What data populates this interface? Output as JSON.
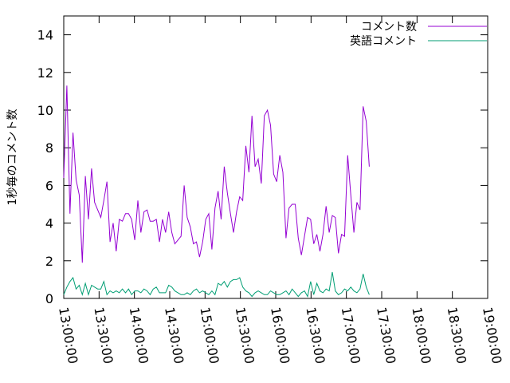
{
  "chart_data": {
    "type": "line",
    "title": "",
    "xlabel": "",
    "ylabel": "1秒毎のコメント数",
    "ylim": [
      0,
      15
    ],
    "yticks": [
      "0",
      "2",
      "4",
      "6",
      "8",
      "10",
      "12",
      "14"
    ],
    "xlim": [
      "13:00:00",
      "19:00:00"
    ],
    "xticks": [
      "13:00:00",
      "13:30:00",
      "14:00:00",
      "14:30:00",
      "15:00:00",
      "15:30:00",
      "16:00:00",
      "16:30:00",
      "17:00:00",
      "17:30:00",
      "18:00:00",
      "18:30:00",
      "19:00:00"
    ],
    "grid": false,
    "legend_position": "top-right",
    "series": [
      {
        "name": "コメント数",
        "color": "#9400d3",
        "points": [
          [
            "13:00:00",
            6.4
          ],
          [
            "13:02:37",
            11.3
          ],
          [
            "13:05:15",
            4.5
          ],
          [
            "13:07:52",
            8.8
          ],
          [
            "13:10:29",
            6.3
          ],
          [
            "13:13:06",
            5.5
          ],
          [
            "13:15:44",
            1.9
          ],
          [
            "13:18:21",
            6.5
          ],
          [
            "13:20:58",
            4.2
          ],
          [
            "13:23:35",
            6.9
          ],
          [
            "13:26:13",
            5.1
          ],
          [
            "13:28:50",
            4.7
          ],
          [
            "13:31:27",
            4.3
          ],
          [
            "13:34:04",
            5.2
          ],
          [
            "13:36:42",
            6.2
          ],
          [
            "13:39:19",
            3.0
          ],
          [
            "13:41:56",
            4.0
          ],
          [
            "13:44:33",
            2.5
          ],
          [
            "13:47:11",
            4.2
          ],
          [
            "13:49:48",
            4.1
          ],
          [
            "13:52:25",
            4.5
          ],
          [
            "13:55:02",
            4.5
          ],
          [
            "13:57:40",
            4.2
          ],
          [
            "14:00:17",
            3.1
          ],
          [
            "14:02:54",
            5.2
          ],
          [
            "14:05:31",
            3.5
          ],
          [
            "14:08:09",
            4.6
          ],
          [
            "14:10:46",
            4.7
          ],
          [
            "14:13:23",
            4.1
          ],
          [
            "14:16:00",
            4.1
          ],
          [
            "14:18:38",
            4.2
          ],
          [
            "14:21:15",
            3.0
          ],
          [
            "14:23:52",
            4.2
          ],
          [
            "14:26:29",
            3.5
          ],
          [
            "14:29:07",
            4.6
          ],
          [
            "14:31:44",
            3.5
          ],
          [
            "14:34:21",
            2.9
          ],
          [
            "14:36:58",
            3.1
          ],
          [
            "14:39:36",
            3.3
          ],
          [
            "14:42:13",
            6.0
          ],
          [
            "14:44:50",
            4.3
          ],
          [
            "14:47:27",
            3.8
          ],
          [
            "14:50:05",
            2.9
          ],
          [
            "14:52:42",
            3.0
          ],
          [
            "14:55:19",
            2.2
          ],
          [
            "14:57:56",
            3.0
          ],
          [
            "15:00:34",
            4.2
          ],
          [
            "15:03:11",
            4.5
          ],
          [
            "15:05:48",
            2.6
          ],
          [
            "15:08:25",
            4.8
          ],
          [
            "15:11:03",
            5.7
          ],
          [
            "15:13:40",
            4.2
          ],
          [
            "15:16:17",
            7.0
          ],
          [
            "15:18:54",
            5.6
          ],
          [
            "15:21:32",
            4.5
          ],
          [
            "15:24:09",
            3.5
          ],
          [
            "15:26:46",
            4.6
          ],
          [
            "15:29:23",
            5.4
          ],
          [
            "15:32:01",
            5.2
          ],
          [
            "15:34:38",
            8.1
          ],
          [
            "15:37:15",
            6.7
          ],
          [
            "15:39:52",
            9.7
          ],
          [
            "15:42:30",
            7.0
          ],
          [
            "15:45:07",
            7.4
          ],
          [
            "15:47:44",
            6.1
          ],
          [
            "15:50:21",
            9.7
          ],
          [
            "15:52:59",
            10.0
          ],
          [
            "15:55:36",
            9.2
          ],
          [
            "15:58:13",
            6.6
          ],
          [
            "16:00:50",
            6.2
          ],
          [
            "16:03:28",
            7.6
          ],
          [
            "16:06:05",
            6.7
          ],
          [
            "16:08:42",
            3.2
          ],
          [
            "16:11:19",
            4.8
          ],
          [
            "16:13:57",
            5.0
          ],
          [
            "16:16:34",
            5.0
          ],
          [
            "16:19:11",
            3.2
          ],
          [
            "16:21:48",
            2.3
          ],
          [
            "16:24:26",
            3.3
          ],
          [
            "16:27:03",
            4.3
          ],
          [
            "16:29:40",
            4.2
          ],
          [
            "16:32:17",
            2.9
          ],
          [
            "16:34:55",
            3.4
          ],
          [
            "16:37:32",
            2.5
          ],
          [
            "16:40:09",
            3.4
          ],
          [
            "16:42:46",
            4.9
          ],
          [
            "16:45:24",
            3.5
          ],
          [
            "16:48:01",
            4.4
          ],
          [
            "16:50:38",
            4.3
          ],
          [
            "16:53:15",
            2.4
          ],
          [
            "16:55:53",
            3.4
          ],
          [
            "16:58:30",
            3.3
          ],
          [
            "17:01:07",
            7.6
          ],
          [
            "17:03:44",
            5.5
          ],
          [
            "17:06:22",
            3.5
          ],
          [
            "17:08:59",
            5.1
          ],
          [
            "17:11:36",
            4.7
          ],
          [
            "17:14:13",
            10.2
          ],
          [
            "17:16:51",
            9.4
          ],
          [
            "17:19:28",
            7.0
          ]
        ]
      },
      {
        "name": "英語コメント",
        "color": "#009e73",
        "points": [
          [
            "13:00:00",
            0.2
          ],
          [
            "13:02:37",
            0.6
          ],
          [
            "13:05:15",
            0.9
          ],
          [
            "13:07:52",
            1.1
          ],
          [
            "13:10:29",
            0.5
          ],
          [
            "13:13:06",
            0.7
          ],
          [
            "13:15:44",
            0.2
          ],
          [
            "13:18:21",
            0.8
          ],
          [
            "13:20:58",
            0.2
          ],
          [
            "13:23:35",
            0.7
          ],
          [
            "13:26:13",
            0.6
          ],
          [
            "13:28:50",
            0.5
          ],
          [
            "13:31:27",
            0.5
          ],
          [
            "13:34:04",
            0.9
          ],
          [
            "13:36:42",
            0.2
          ],
          [
            "13:39:19",
            0.4
          ],
          [
            "13:41:56",
            0.3
          ],
          [
            "13:44:33",
            0.4
          ],
          [
            "13:47:11",
            0.3
          ],
          [
            "13:49:48",
            0.5
          ],
          [
            "13:52:25",
            0.3
          ],
          [
            "13:55:02",
            0.5
          ],
          [
            "13:57:40",
            0.2
          ],
          [
            "14:00:17",
            0.4
          ],
          [
            "14:02:54",
            0.4
          ],
          [
            "14:05:31",
            0.3
          ],
          [
            "14:08:09",
            0.5
          ],
          [
            "14:10:46",
            0.4
          ],
          [
            "14:13:23",
            0.2
          ],
          [
            "14:16:00",
            0.5
          ],
          [
            "14:18:38",
            0.6
          ],
          [
            "14:21:15",
            0.3
          ],
          [
            "14:23:52",
            0.3
          ],
          [
            "14:26:29",
            0.3
          ],
          [
            "14:29:07",
            0.7
          ],
          [
            "14:31:44",
            0.6
          ],
          [
            "14:34:21",
            0.4
          ],
          [
            "14:36:58",
            0.3
          ],
          [
            "14:39:36",
            0.2
          ],
          [
            "14:42:13",
            0.2
          ],
          [
            "14:44:50",
            0.3
          ],
          [
            "14:47:27",
            0.2
          ],
          [
            "14:50:05",
            0.4
          ],
          [
            "14:52:42",
            0.5
          ],
          [
            "14:55:19",
            0.3
          ],
          [
            "14:57:56",
            0.4
          ],
          [
            "15:00:34",
            0.3
          ],
          [
            "15:03:11",
            0.2
          ],
          [
            "15:05:48",
            0.4
          ],
          [
            "15:08:25",
            0.2
          ],
          [
            "15:11:03",
            0.8
          ],
          [
            "15:13:40",
            0.7
          ],
          [
            "15:16:17",
            0.9
          ],
          [
            "15:18:54",
            0.6
          ],
          [
            "15:21:32",
            0.9
          ],
          [
            "15:24:09",
            1.0
          ],
          [
            "15:26:46",
            1.0
          ],
          [
            "15:29:23",
            1.1
          ],
          [
            "15:32:01",
            0.6
          ],
          [
            "15:34:38",
            0.4
          ],
          [
            "15:37:15",
            0.3
          ],
          [
            "15:39:52",
            0.1
          ],
          [
            "15:42:30",
            0.3
          ],
          [
            "15:45:07",
            0.4
          ],
          [
            "15:47:44",
            0.3
          ],
          [
            "15:50:21",
            0.2
          ],
          [
            "15:52:59",
            0.2
          ],
          [
            "15:55:36",
            0.4
          ],
          [
            "15:58:13",
            0.3
          ],
          [
            "16:00:50",
            0.2
          ],
          [
            "16:03:28",
            0.2
          ],
          [
            "16:06:05",
            0.3
          ],
          [
            "16:08:42",
            0.4
          ],
          [
            "16:11:19",
            0.2
          ],
          [
            "16:13:57",
            0.5
          ],
          [
            "16:16:34",
            0.3
          ],
          [
            "16:19:11",
            0.1
          ],
          [
            "16:21:48",
            0.3
          ],
          [
            "16:24:26",
            0.4
          ],
          [
            "16:27:03",
            0.1
          ],
          [
            "16:29:40",
            0.9
          ],
          [
            "16:32:17",
            0.2
          ],
          [
            "16:34:55",
            0.8
          ],
          [
            "16:37:32",
            0.4
          ],
          [
            "16:40:09",
            0.3
          ],
          [
            "16:42:46",
            0.5
          ],
          [
            "16:45:24",
            0.4
          ],
          [
            "16:48:01",
            1.4
          ],
          [
            "16:50:38",
            0.4
          ],
          [
            "16:53:15",
            0.2
          ],
          [
            "16:55:53",
            0.3
          ],
          [
            "16:58:30",
            0.5
          ],
          [
            "17:01:07",
            0.4
          ],
          [
            "17:03:44",
            0.6
          ],
          [
            "17:06:22",
            0.4
          ],
          [
            "17:08:59",
            0.3
          ],
          [
            "17:11:36",
            0.5
          ],
          [
            "17:14:13",
            1.3
          ],
          [
            "17:16:51",
            0.6
          ],
          [
            "17:19:28",
            0.2
          ]
        ]
      }
    ]
  }
}
